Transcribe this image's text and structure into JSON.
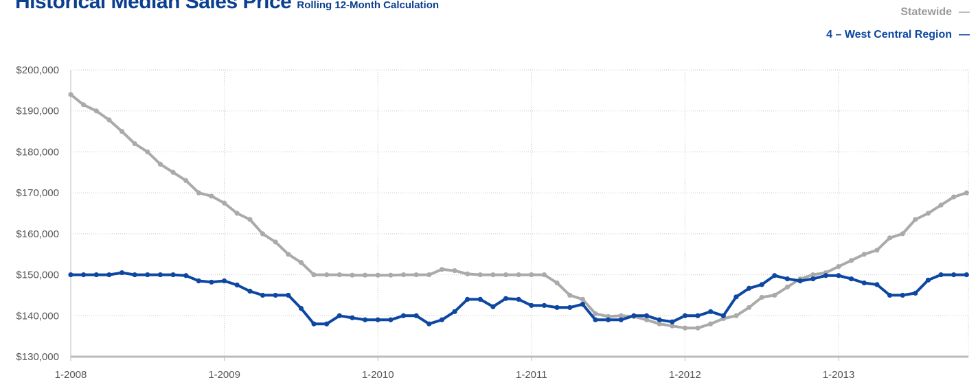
{
  "header": {
    "title": "Historical Median Sales Price",
    "subtitle": "Rolling 12-Month Calculation"
  },
  "legend": {
    "items": [
      {
        "label": "Statewide",
        "symbol": "—",
        "color": "#999999"
      },
      {
        "label": "4 – West Central Region",
        "symbol": "—",
        "color": "#0d47a1"
      }
    ]
  },
  "chart_data": {
    "type": "line",
    "title": "Historical Median Sales Price",
    "subtitle": "Rolling 12-Month Calculation",
    "x_tick_labels": [
      "1-2008",
      "1-2009",
      "1-2010",
      "1-2011",
      "1-2012",
      "1-2013"
    ],
    "x_start": "1-2008",
    "x_end": "11-2013",
    "y_tick_labels": [
      "$130,000",
      "$140,000",
      "$150,000",
      "$160,000",
      "$170,000",
      "$180,000",
      "$190,000",
      "$200,000"
    ],
    "ylim": [
      130000,
      200000
    ],
    "y_step": 10000,
    "grid": true,
    "legend_position": "top-right",
    "series": [
      {
        "name": "Statewide",
        "color": "#aaaaaa",
        "values": [
          194000,
          191500,
          190000,
          187800,
          185000,
          182000,
          180000,
          177000,
          175000,
          173000,
          170000,
          169200,
          167500,
          165000,
          163500,
          160000,
          158000,
          155000,
          153000,
          150000,
          150000,
          150000,
          149900,
          149900,
          149900,
          149900,
          150000,
          150000,
          150000,
          151300,
          151000,
          150200,
          150000,
          150000,
          150000,
          150000,
          150000,
          150000,
          148000,
          145000,
          144000,
          140500,
          139800,
          140000,
          139800,
          139000,
          138000,
          137500,
          137000,
          137000,
          138000,
          139300,
          140000,
          142000,
          144500,
          145000,
          147000,
          149000,
          150000,
          150500,
          152000,
          153500,
          155000,
          156000,
          159000,
          160000,
          163500,
          165000,
          167000,
          169000,
          170000
        ]
      },
      {
        "name": "4 – West Central Region",
        "color": "#0d47a1",
        "values": [
          150000,
          150000,
          150000,
          150000,
          150500,
          150000,
          150000,
          150000,
          150000,
          149800,
          148500,
          148200,
          148500,
          147500,
          146000,
          145000,
          145000,
          145000,
          141800,
          138000,
          138000,
          140000,
          139500,
          139000,
          139000,
          139000,
          140000,
          140000,
          138000,
          139000,
          141000,
          144000,
          144000,
          142200,
          144200,
          144000,
          142500,
          142500,
          142000,
          142000,
          142800,
          139000,
          139000,
          139000,
          140000,
          140000,
          139000,
          138500,
          140000,
          140000,
          141000,
          140000,
          144600,
          146700,
          147600,
          149800,
          149000,
          148500,
          149000,
          149800,
          149800,
          149000,
          148000,
          147600,
          145000,
          145000,
          145500,
          148700,
          150000,
          150000,
          150000
        ]
      }
    ]
  }
}
